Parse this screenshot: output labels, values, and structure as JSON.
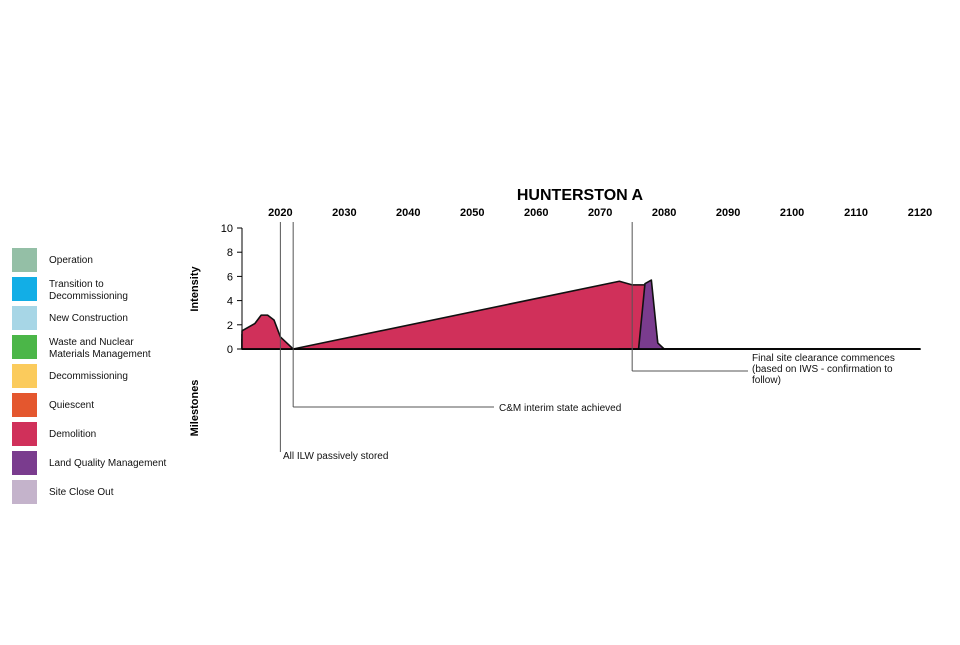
{
  "chart_data": {
    "type": "area",
    "title": "HUNTERSTON A",
    "xlabel": "",
    "ylabel": "Intensity",
    "milestones_label": "Milestones",
    "xlim": [
      2014,
      2120
    ],
    "ylim": [
      0,
      10
    ],
    "x_ticks": [
      "2020",
      "2030",
      "2040",
      "2050",
      "2060",
      "2070",
      "2080",
      "2090",
      "2100",
      "2110",
      "2120"
    ],
    "y_ticks": [
      "10",
      "8",
      "6",
      "4",
      "2",
      "0"
    ],
    "legend_position": "left",
    "legend": [
      {
        "label": "Operation",
        "color": "#94bfa6"
      },
      {
        "label": "Transition to\nDecommissioning",
        "color": "#12aee6"
      },
      {
        "label": "New Construction",
        "color": "#a7d6e6"
      },
      {
        "label": "Waste and Nuclear\nMaterials Management",
        "color": "#4bb648"
      },
      {
        "label": "Decommissioning",
        "color": "#fbcb5c"
      },
      {
        "label": "Quiescent",
        "color": "#e4572e"
      },
      {
        "label": "Demolition",
        "color": "#d0305a"
      },
      {
        "label": "Land Quality Management",
        "color": "#7a3c8e"
      },
      {
        "label": "Site Close Out",
        "color": "#c4b3cb"
      }
    ],
    "series": [
      {
        "name": "New Construction",
        "color": "#a7d6e6",
        "points": [
          [
            2014,
            0
          ],
          [
            2017,
            0
          ],
          [
            2019,
            0.7
          ],
          [
            2020,
            0.2
          ],
          [
            2021,
            0
          ],
          [
            2070,
            0
          ],
          [
            2071,
            0.2
          ],
          [
            2072,
            1.0
          ],
          [
            2073,
            3.3
          ],
          [
            2074,
            2.6
          ],
          [
            2074.8,
            0
          ],
          [
            2120,
            0
          ]
        ]
      },
      {
        "name": "Waste and Nuclear Materials Management",
        "color": "#4bb648",
        "points": [
          [
            2014,
            0.8
          ],
          [
            2016,
            1.1
          ],
          [
            2017,
            0.8
          ],
          [
            2018,
            0.6
          ],
          [
            2019,
            0.7
          ],
          [
            2020,
            0.3
          ],
          [
            2021,
            0
          ],
          [
            2040,
            0
          ],
          [
            2041,
            0.05
          ],
          [
            2042,
            0.1
          ],
          [
            2044,
            0.15
          ],
          [
            2045,
            0.05
          ],
          [
            2046,
            0
          ],
          [
            2061,
            0
          ],
          [
            2062,
            0.1
          ],
          [
            2063,
            0
          ],
          [
            2070,
            0
          ],
          [
            2071,
            0.2
          ],
          [
            2072,
            1.0
          ],
          [
            2073,
            5.3
          ],
          [
            2075,
            4.4
          ],
          [
            2076,
            3.2
          ],
          [
            2078,
            3.2
          ],
          [
            2079,
            0.4
          ],
          [
            2080,
            0
          ],
          [
            2120,
            0
          ]
        ]
      },
      {
        "name": "Decommissioning",
        "color": "#fbcb5c",
        "points": [
          [
            2014,
            1.2
          ],
          [
            2016,
            1.6
          ],
          [
            2018,
            1.3
          ],
          [
            2019,
            1.0
          ],
          [
            2020,
            0.4
          ],
          [
            2021,
            0
          ],
          [
            2120,
            0
          ]
        ]
      },
      {
        "name": "Demolition",
        "color": "#d0305a",
        "points": [
          [
            2014,
            1.5
          ],
          [
            2016,
            2.1
          ],
          [
            2017,
            2.8
          ],
          [
            2018,
            2.8
          ],
          [
            2019,
            2.4
          ],
          [
            2020,
            1.0
          ],
          [
            2021,
            0.5
          ],
          [
            2022,
            0
          ],
          [
            2073,
            5.6
          ],
          [
            2075,
            5.3
          ],
          [
            2077,
            5.3
          ],
          [
            2078,
            5.1
          ],
          [
            2079,
            0.4
          ],
          [
            2080,
            0
          ],
          [
            2120,
            0
          ]
        ]
      },
      {
        "name": "Land Quality Management",
        "color": "#7a3c8e",
        "points": [
          [
            2073,
            0
          ],
          [
            2076,
            0
          ],
          [
            2077,
            5.4
          ],
          [
            2078,
            5.7
          ],
          [
            2079,
            0.5
          ],
          [
            2080,
            0
          ]
        ]
      }
    ],
    "milestones": [
      {
        "label": "All ILW passively stored",
        "x": 2020
      },
      {
        "label": "C&M interim state achieved",
        "x": 2022
      },
      {
        "label": "Final site clearance commences\n(based on IWS - confirmation to\nfollow)",
        "x": 2075
      }
    ]
  }
}
